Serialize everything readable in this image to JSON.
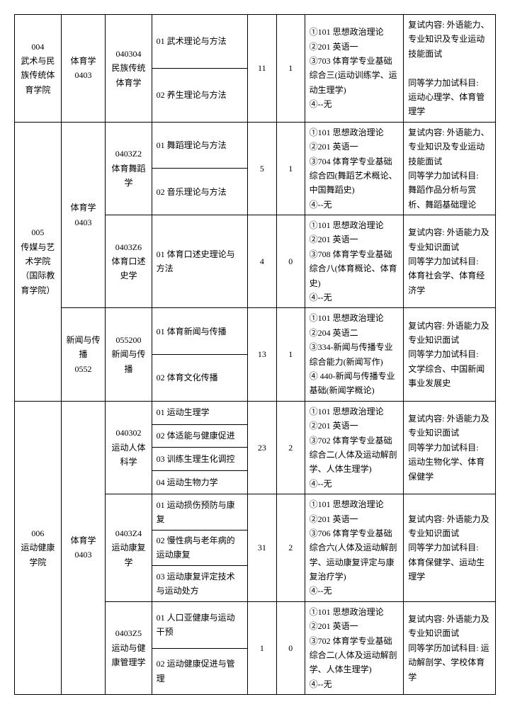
{
  "rows": [
    {
      "school": "004\n武术与民族传统体育学院",
      "cat": "体育学\n0403",
      "major": "040304\n民族传统体育学",
      "dirs": [
        "01 武术理论与方法",
        "02 养生理论与方法"
      ],
      "n1": "11",
      "n2": "1",
      "exam": "①101 思想政治理论\n②201 英语一\n③703 体育学专业基础综合三(运动训练学、运动生理学)\n④--无",
      "retest": "复试内容: 外语能力、专业知识及专业运动技能面试\n\n同等学力加试科目:\n运动心理学、体育管理学"
    },
    {
      "school": "005\n传媒与艺术学院（国际教育学院）",
      "cat": "体育学\n0403",
      "groups": [
        {
          "major": "0403Z2\n体育舞蹈学",
          "dirs": [
            "01 舞蹈理论与方法",
            "02 音乐理论与方法"
          ],
          "n1": "5",
          "n2": "1",
          "exam": "①101 思想政治理论\n②201 英语一\n③704 体育学专业基础综合四(舞蹈艺术概论、中国舞蹈史)\n④--无",
          "retest": "复试内容: 外语能力、专业知识及专业运动技能面试\n同等学力加试科目:\n舞蹈作品分析与赏析、舞蹈基础理论"
        },
        {
          "major": "0403Z6\n体育口述史学",
          "dirs": [
            "01 体育口述史理论与方法"
          ],
          "n1": "4",
          "n2": "0",
          "exam": "①101 思想政治理论\n②201 英语一\n③708 体育学专业基础综合八(体育概论、体育史)\n④--无",
          "retest": "复试内容: 外语能力及专业知识面试\n同等学力加试科目:\n体育社会学、体育经济学"
        }
      ],
      "cat2": "新闻与传播\n0552",
      "group2": {
        "major": "055200\n新闻与传播",
        "dirs": [
          "01 体育新闻与传播",
          "02 体育文化传播"
        ],
        "n1": "13",
        "n2": "1",
        "exam": "①101 思想政治理论\n②204 英语二\n③334-新闻与传播专业综合能力(新闻写作)\n④ 440-新闻与传播专业基础(新闻学概论)",
        "retest": "复试内容: 外语能力及专业知识面试\n同等学力加试科目:\n文学综合、中国新闻事业发展史"
      }
    },
    {
      "school": "006\n运动健康学院",
      "cat": "体育学\n0403",
      "groups": [
        {
          "major": "040302\n运动人体科学",
          "dirs": [
            "01 运动生理学",
            "02 体适能与健康促进",
            "03 训练生理生化调控",
            "04 运动生物力学"
          ],
          "n1": "23",
          "n2": "2",
          "exam": "①101 思想政治理论\n②201 英语一\n③702 体育学专业基础综合二(人体及运动解剖学、人体生理学)\n④--无",
          "retest": "复试内容: 外语能力及专业知识面试\n同等学力加试科目:\n运动生物化学、体育保健学"
        },
        {
          "major": "0403Z4\n运动康复学",
          "dirs": [
            "01 运动损伤预防与康复",
            "02 慢性病与老年病的运动康复",
            "03 运动康复评定技术与运动处方"
          ],
          "n1": "31",
          "n2": "2",
          "exam": "①101 思想政治理论\n②201 英语一\n③706 体育学专业基础综合六(人体及运动解剖学、运动康复评定与康复治疗学)\n④--无",
          "retest": "复试内容: 外语能力及专业知识面试\n同等学力加试科目:\n体育保健学、运动生理学"
        },
        {
          "major": "0403Z5\n运动与健康管理学",
          "dirs": [
            "01 人口亚健康与运动干预",
            "02 运动健康促进与管理"
          ],
          "n1": "1",
          "n2": "0",
          "exam": "①101 思想政治理论\n②201 英语一\n③702 体育学专业基础综合二(人体及运动解剖学、人体生理学)\n④--无",
          "retest": "复试内容: 外语能力及专业知识面试\n同等学历加试科目: 运动解剖学、学校体育学"
        }
      ]
    }
  ]
}
